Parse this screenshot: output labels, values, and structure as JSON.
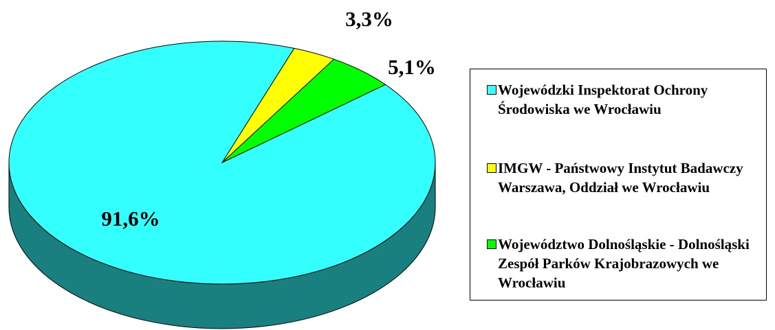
{
  "chart_data": {
    "type": "pie",
    "categories": [
      "Wojewódzki Inspektorat Ochrony Środowiska we Wrocławiu",
      "IMGW - Państwowy Instytut Badawczy Warszawa, Oddział we Wrocławiu",
      "Województwo Dolnośląskie - Dolnośląski Zespół Parków Krajobrazowych we Wrocławiu"
    ],
    "values": [
      91.6,
      3.3,
      5.1
    ],
    "value_labels": [
      "91,6%",
      "3,3%",
      "5,1%"
    ],
    "colors": [
      "#33FFFF",
      "#FFFF00",
      "#00FF00"
    ],
    "legend": "right"
  }
}
